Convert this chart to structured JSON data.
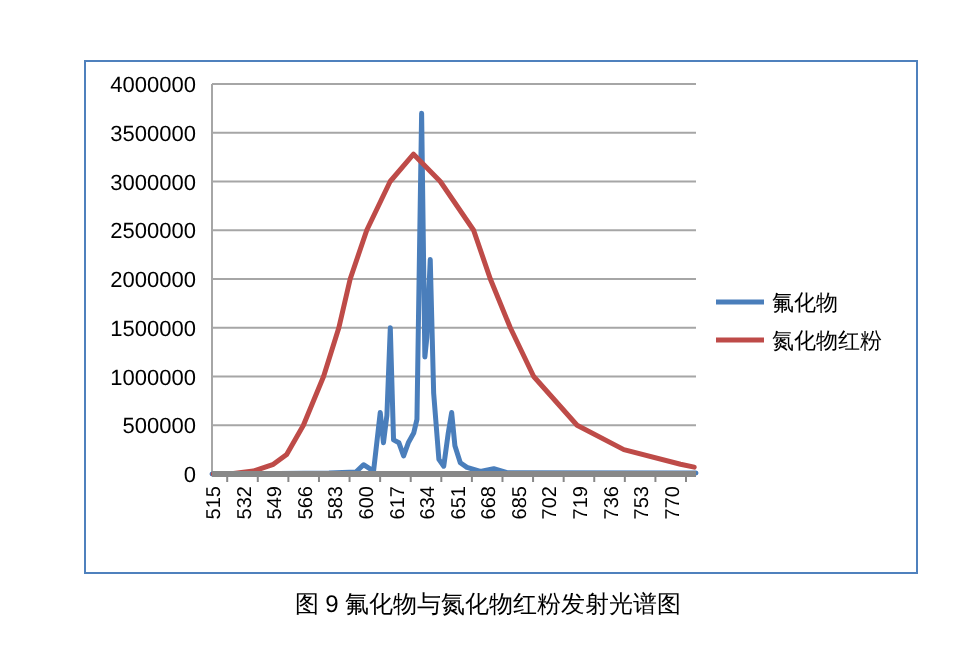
{
  "chart_data": {
    "type": "line",
    "title": "图 9 氟化物与氮化物红粉发射光谱图",
    "legend": "right",
    "grid": "y",
    "marker": "none",
    "line_style": "solid",
    "xlim": [
      515,
      784
    ],
    "xticks": [
      515,
      532,
      549,
      566,
      583,
      600,
      617,
      634,
      651,
      668,
      685,
      702,
      719,
      736,
      753,
      770
    ],
    "ylim": [
      0,
      4000000
    ],
    "yticks": [
      0,
      500000,
      1000000,
      1500000,
      2000000,
      2500000,
      3000000,
      3500000,
      4000000
    ],
    "series": [
      {
        "name": "氟化物",
        "color": "#4a7ebb",
        "x": [
          515,
          580,
          595,
          599.2,
          604.8,
          608.5,
          610.3,
          612.2,
          614.1,
          615.9,
          618.9,
          621.5,
          624.1,
          627.1,
          628.9,
          631.5,
          633.3,
          634.4,
          636.3,
          638.2,
          641.1,
          643.8,
          646.3,
          648.2,
          650,
          653,
          656.7,
          664.2,
          671.6,
          679,
          784
        ],
        "values": [
          0,
          10000,
          20000,
          95000,
          30000,
          630000,
          320000,
          600000,
          1500000,
          350000,
          320000,
          185000,
          320000,
          420000,
          560000,
          3700000,
          1200000,
          1400000,
          2200000,
          830000,
          150000,
          80000,
          420000,
          630000,
          290000,
          115000,
          68000,
          27000,
          55000,
          14000,
          10000
        ]
      },
      {
        "name": "氮化物红粉",
        "color": "#be4b48",
        "x": [
          515.7,
          526.9,
          538,
          549.1,
          556.5,
          565.8,
          577,
          585.5,
          591.8,
          601,
          614,
          627,
          641.9,
          660.4,
          669.7,
          680.8,
          693.8,
          717.9,
          743.9,
          775.4,
          783
        ],
        "values": [
          0,
          5000,
          30000,
          100000,
          200000,
          500000,
          1000000,
          1500000,
          2000000,
          2500000,
          3000000,
          3280000,
          3000000,
          2500000,
          2000000,
          1500000,
          1000000,
          500000,
          250000,
          100000,
          70000
        ]
      }
    ]
  }
}
